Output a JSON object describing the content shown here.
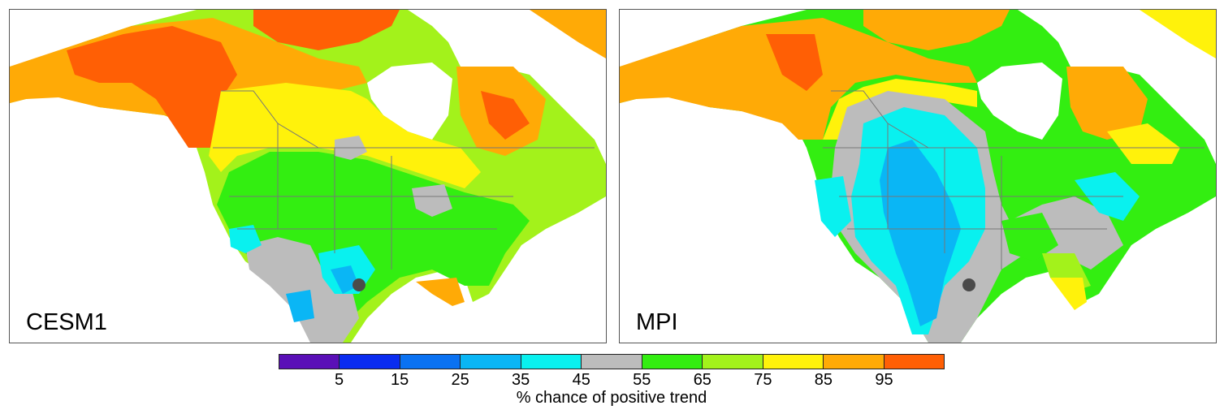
{
  "panels": [
    {
      "label": "CESM1"
    },
    {
      "label": "MPI"
    }
  ],
  "colorbar": {
    "title": "% chance of positive trend",
    "tick_labels": [
      "5",
      "15",
      "25",
      "35",
      "45",
      "55",
      "65",
      "75",
      "85",
      "95"
    ],
    "colors": [
      "#5a0fb7",
      "#0a2cf0",
      "#0a72f2",
      "#0ab6f5",
      "#09f1ef",
      "#bcbcbc",
      "#33ee11",
      "#a3f21b",
      "#fff20b",
      "#ffaa06",
      "#ff5f05"
    ]
  },
  "marker": {
    "color": "#4a4a4a"
  },
  "colors": {
    "land_base": "#33ee11",
    "gray": "#bcbcbc",
    "cyan": "#09f1ef",
    "lightblue": "#0ab6f5",
    "blue": "#0a72f2",
    "yellow": "#fff20b",
    "yellowgreen": "#a3f21b",
    "orange": "#ffaa06",
    "redorange": "#ff5f05",
    "border": "#777777"
  }
}
